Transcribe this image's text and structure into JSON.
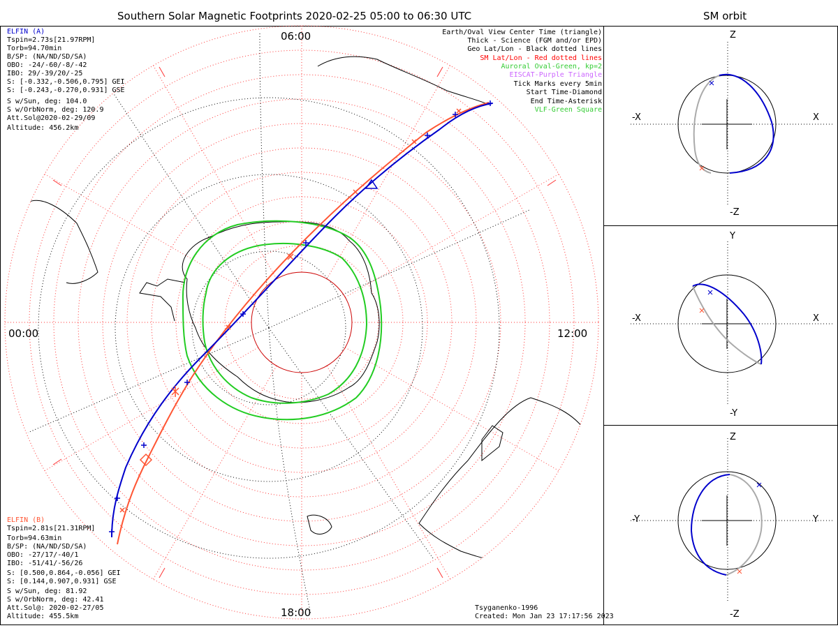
{
  "title": "Southern Solar Magnetic Footprints 2020-02-25 05:00 to 06:30 UTC",
  "orbit_title": "SM orbit",
  "clock_labels": {
    "top": "06:00",
    "left": "00:00",
    "right": "12:00",
    "bottom": "18:00"
  },
  "sat_a": {
    "name": "ELFIN (A)",
    "color": "#0000cc",
    "lines": [
      "Tspin=2.73s[21.97RPM]",
      "Torb=94.70min",
      "B/SP: (NA/ND/SD/SA)",
      "OBO: -24/-60/-8/-42",
      "IBO: 29/-39/20/-25",
      "S: [-0.332,-0.506,0.795] GEI",
      "S: [-0.243,-0.270,0.931] GSE",
      "S w/Sun, deg: 104.0",
      "S w/OrbNorm, deg: 120.9",
      "Att.Sol@2020-02-29/09",
      "Altitude: 456.2km"
    ]
  },
  "sat_b": {
    "name": "ELFIN (B)",
    "color": "#ff5533",
    "lines": [
      "Tspin=2.81s[21.31RPM]",
      "Torb=94.63min",
      "B/SP: (NA/ND/SD/SA)",
      "OBO: -27/17/-40/1",
      "IBO: -51/41/-56/26",
      "S: [0.500,0.864,-0.056] GEI",
      "S: [0.144,0.907,0.931] GSE",
      "S w/Sun, deg: 81.92",
      "S w/OrbNorm, deg: 42.41",
      "Att.Sol@: 2020-02-27/05",
      "Altitude: 455.5km"
    ]
  },
  "legend": [
    {
      "text": "Earth/Oval View Center Time (triangle)",
      "color": "#000000"
    },
    {
      "text": "Thick - Science (FGM and/or EPD)",
      "color": "#000000"
    },
    {
      "text": "Geo Lat/Lon - Black dotted lines",
      "color": "#000000"
    },
    {
      "text": "SM Lat/Lon - Red dotted lines",
      "color": "#ff0000"
    },
    {
      "text": "Auroral Oval-Green, kp=2",
      "color": "#33cc33"
    },
    {
      "text": "EISCAT-Purple Triangle",
      "color": "#cc66ff"
    },
    {
      "text": "Tick Marks every 5min",
      "color": "#000000"
    },
    {
      "text": "Start Time-Diamond",
      "color": "#000000"
    },
    {
      "text": "End Time-Asterisk",
      "color": "#000000"
    },
    {
      "text": "VLF-Green Square",
      "color": "#33cc33"
    }
  ],
  "credits": {
    "model": "Tsyganenko-1996",
    "created": "Created: Mon Jan 23 17:17:56 2023"
  },
  "orbit_panels": [
    {
      "top": "Z",
      "bottom": "-Z",
      "left": "-X",
      "right": "X"
    },
    {
      "top": "Y",
      "bottom": "-Y",
      "left": "-X",
      "right": "X"
    },
    {
      "top": "Z",
      "bottom": "-Z",
      "left": "-Y",
      "right": "Y"
    }
  ],
  "colors": {
    "oval": "#22cc22",
    "grid_sm": "#ff3333",
    "track_a": "#0000cc",
    "track_b": "#ff5533",
    "orbit_grey": "#aaaaaa"
  }
}
